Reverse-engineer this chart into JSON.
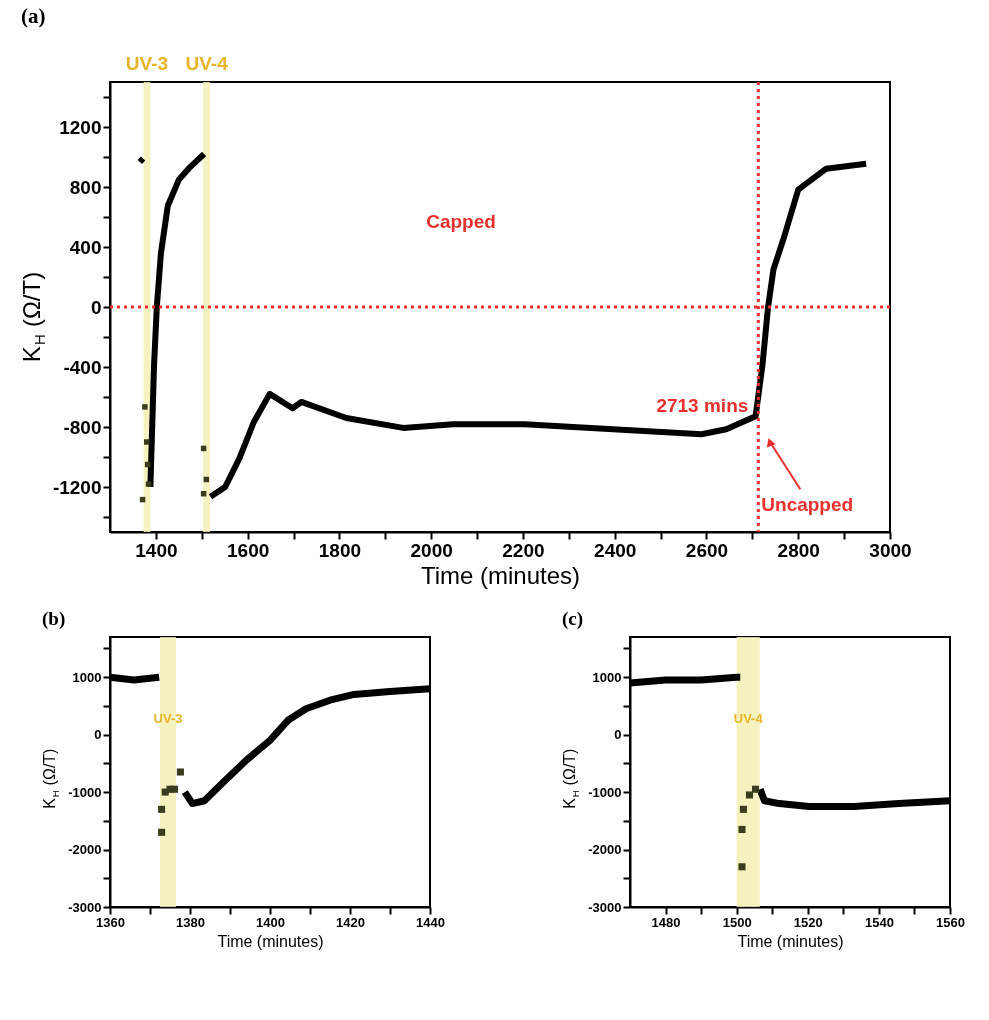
{
  "chart_data": [
    {
      "type": "line",
      "title": "(a)",
      "xlabel": "Time (minutes)",
      "ylabel": "K$_{H}$ (Ω/T)",
      "xlim": [
        1300,
        3000
      ],
      "ylim": [
        -1500,
        1500
      ],
      "xticks": [
        1400,
        {
          "value": 1500,
          "label": null
        },
        1600,
        {
          "value": 1700,
          "label": null
        },
        1800,
        {
          "value": 1900,
          "label": null
        },
        2000,
        {
          "value": 2100,
          "label": null
        },
        2200,
        {
          "value": 2300,
          "label": null
        },
        2400,
        {
          "value": 2500,
          "label": null
        },
        2600,
        {
          "value": 2700,
          "label": null
        },
        2800,
        {
          "value": 2900,
          "label": null
        },
        3000
      ],
      "yticks": [
        {
          "value": -1400,
          "label": null
        },
        -1200,
        {
          "value": -1000,
          "label": null
        },
        -800,
        {
          "value": -600,
          "label": null
        },
        -400,
        {
          "value": -200,
          "label": null
        },
        0,
        {
          "value": 200,
          "label": null
        },
        400,
        {
          "value": 600,
          "label": null
        },
        800,
        {
          "value": 1000,
          "label": null
        },
        1200,
        {
          "value": 1400,
          "label": null
        }
      ],
      "grid": false,
      "line_style": "solid",
      "series": [
        {
          "color": "#000000",
          "x": [
            1365,
            1372,
            1380,
            1388,
            1396,
            1402,
            1411,
            1426,
            1450,
            1474,
            1505,
            1512,
            1519,
            1551,
            1582,
            1613,
            1648,
            1698,
            1717,
            1815,
            1939,
            2048,
            2204,
            2396,
            2589,
            2643,
            2707,
            2722,
            2734,
            2746,
            2769,
            2800,
            2861,
            2948
          ],
          "values": [
            967,
            990,
            null,
            -1200,
            -388,
            0,
            358,
            675,
            848,
            931,
            1020,
            null,
            -1265,
            -1200,
            -1009,
            -770,
            -579,
            -675,
            -633,
            -740,
            -806,
            -782,
            -782,
            -815,
            -848,
            -815,
            -729,
            -388,
            -6,
            250,
            465,
            782,
            922,
            955
          ]
        },
        {
          "type": "scatter",
          "marker": "square",
          "color": "#3b3b1e",
          "x": [
            1371,
            1376,
            1380,
            1382,
            1384,
            1504,
            1504,
            1510
          ],
          "values": [
            -1284,
            -666,
            -900,
            -1050,
            -1180,
            -943,
            -1245,
            -1150
          ]
        }
      ],
      "bands": [
        {
          "axis": "x",
          "from": 1373,
          "to": 1388,
          "label": "UV-3",
          "color": "#f3f0b4"
        },
        {
          "axis": "x",
          "from": 1503,
          "to": 1518,
          "label": "UV-4",
          "color": "#f3f0b4"
        }
      ],
      "ref_lines": [
        {
          "axis": "y",
          "value": 0,
          "color": "#e8312f",
          "line_style": "dotted"
        },
        {
          "axis": "x",
          "value": 2713,
          "label": "2713 mins",
          "color": "#e8312f",
          "line_style": "dotted"
        }
      ],
      "annotations": [
        "Capped",
        "Uncapped"
      ]
    },
    {
      "type": "line",
      "title": "(b)",
      "xlabel": "Time (minutes)",
      "ylabel": "K$_{H}$ (Ω/T)",
      "xlim": [
        1360,
        1440
      ],
      "ylim": [
        -3000,
        1700
      ],
      "xticks": [
        1360,
        {
          "value": 1370,
          "label": null
        },
        1380,
        {
          "value": 1390,
          "label": null
        },
        1400,
        {
          "value": 1410,
          "label": null
        },
        1420,
        {
          "value": 1430,
          "label": null
        },
        1440
      ],
      "yticks": [
        -3000,
        {
          "value": -2500,
          "label": null
        },
        -2000,
        {
          "value": -1500,
          "label": null
        },
        -1000,
        {
          "value": -500,
          "label": null
        },
        0,
        {
          "value": 500,
          "label": null
        },
        1000,
        {
          "value": 1500,
          "label": null
        }
      ],
      "grid": false,
      "line_style": "solid",
      "series": [
        {
          "color": "#000000",
          "x": [
            1360,
            1366,
            1372.3,
            1375,
            1378.7,
            1380.6,
            1383.6,
            1388,
            1394,
            1400,
            1404.5,
            1409,
            1415,
            1421,
            1430,
            1440
          ],
          "values": [
            1000,
            950,
            1000,
            null,
            -1000,
            -1200,
            -1150,
            -850,
            -450,
            -100,
            250,
            450,
            600,
            700,
            750,
            800
          ]
        },
        {
          "type": "scatter",
          "marker": "square",
          "color": "#3b3b1e",
          "x": [
            1372.9,
            1372.9,
            1373.8,
            1375,
            1376.1,
            1377.6
          ],
          "values": [
            -1700,
            -1300,
            -1000,
            -950,
            -950,
            -650
          ]
        }
      ],
      "bands": [
        {
          "axis": "x",
          "from": 1372.5,
          "to": 1376.5,
          "label": "UV-3",
          "color": "#f3f0b4"
        }
      ]
    },
    {
      "type": "line",
      "title": "(c)",
      "xlabel": "Time (minutes)",
      "ylabel": "K$_{H}$ (Ω/T)",
      "xlim": [
        1470,
        1560
      ],
      "ylim": [
        -3000,
        1700
      ],
      "xticks": [
        1480,
        {
          "value": 1490,
          "label": null
        },
        1500,
        {
          "value": 1510,
          "label": null
        },
        1520,
        {
          "value": 1530,
          "label": null
        },
        1540,
        {
          "value": 1550,
          "label": null
        },
        1560
      ],
      "yticks": [
        -3000,
        {
          "value": -2500,
          "label": null
        },
        -2000,
        {
          "value": -1500,
          "label": null
        },
        -1000,
        {
          "value": -500,
          "label": null
        },
        0,
        {
          "value": 500,
          "label": null
        },
        1000,
        {
          "value": 1500,
          "label": null
        }
      ],
      "grid": false,
      "line_style": "solid",
      "series": [
        {
          "color": "#000000",
          "x": [
            1470,
            1480,
            1490,
            1500,
            1501,
            1504,
            1506.6,
            1507.8,
            1512,
            1520.4,
            1524.6,
            1533,
            1545.6,
            1560
          ],
          "values": [
            900,
            950,
            950,
            1000,
            1000,
            null,
            -950,
            -1150,
            -1200,
            -1250,
            -1250,
            -1250,
            -1200,
            -1150
          ]
        },
        {
          "type": "scatter",
          "marker": "square",
          "color": "#3b3b1e",
          "x": [
            1501.5,
            1501.5,
            1501.9,
            1503.6,
            1505.3
          ],
          "values": [
            -2300,
            -1650,
            -1300,
            -1050,
            -950
          ]
        }
      ],
      "bands": [
        {
          "axis": "x",
          "from": 1500,
          "to": 1506.5,
          "label": "UV-4",
          "color": "#f3f0b4"
        }
      ]
    }
  ]
}
